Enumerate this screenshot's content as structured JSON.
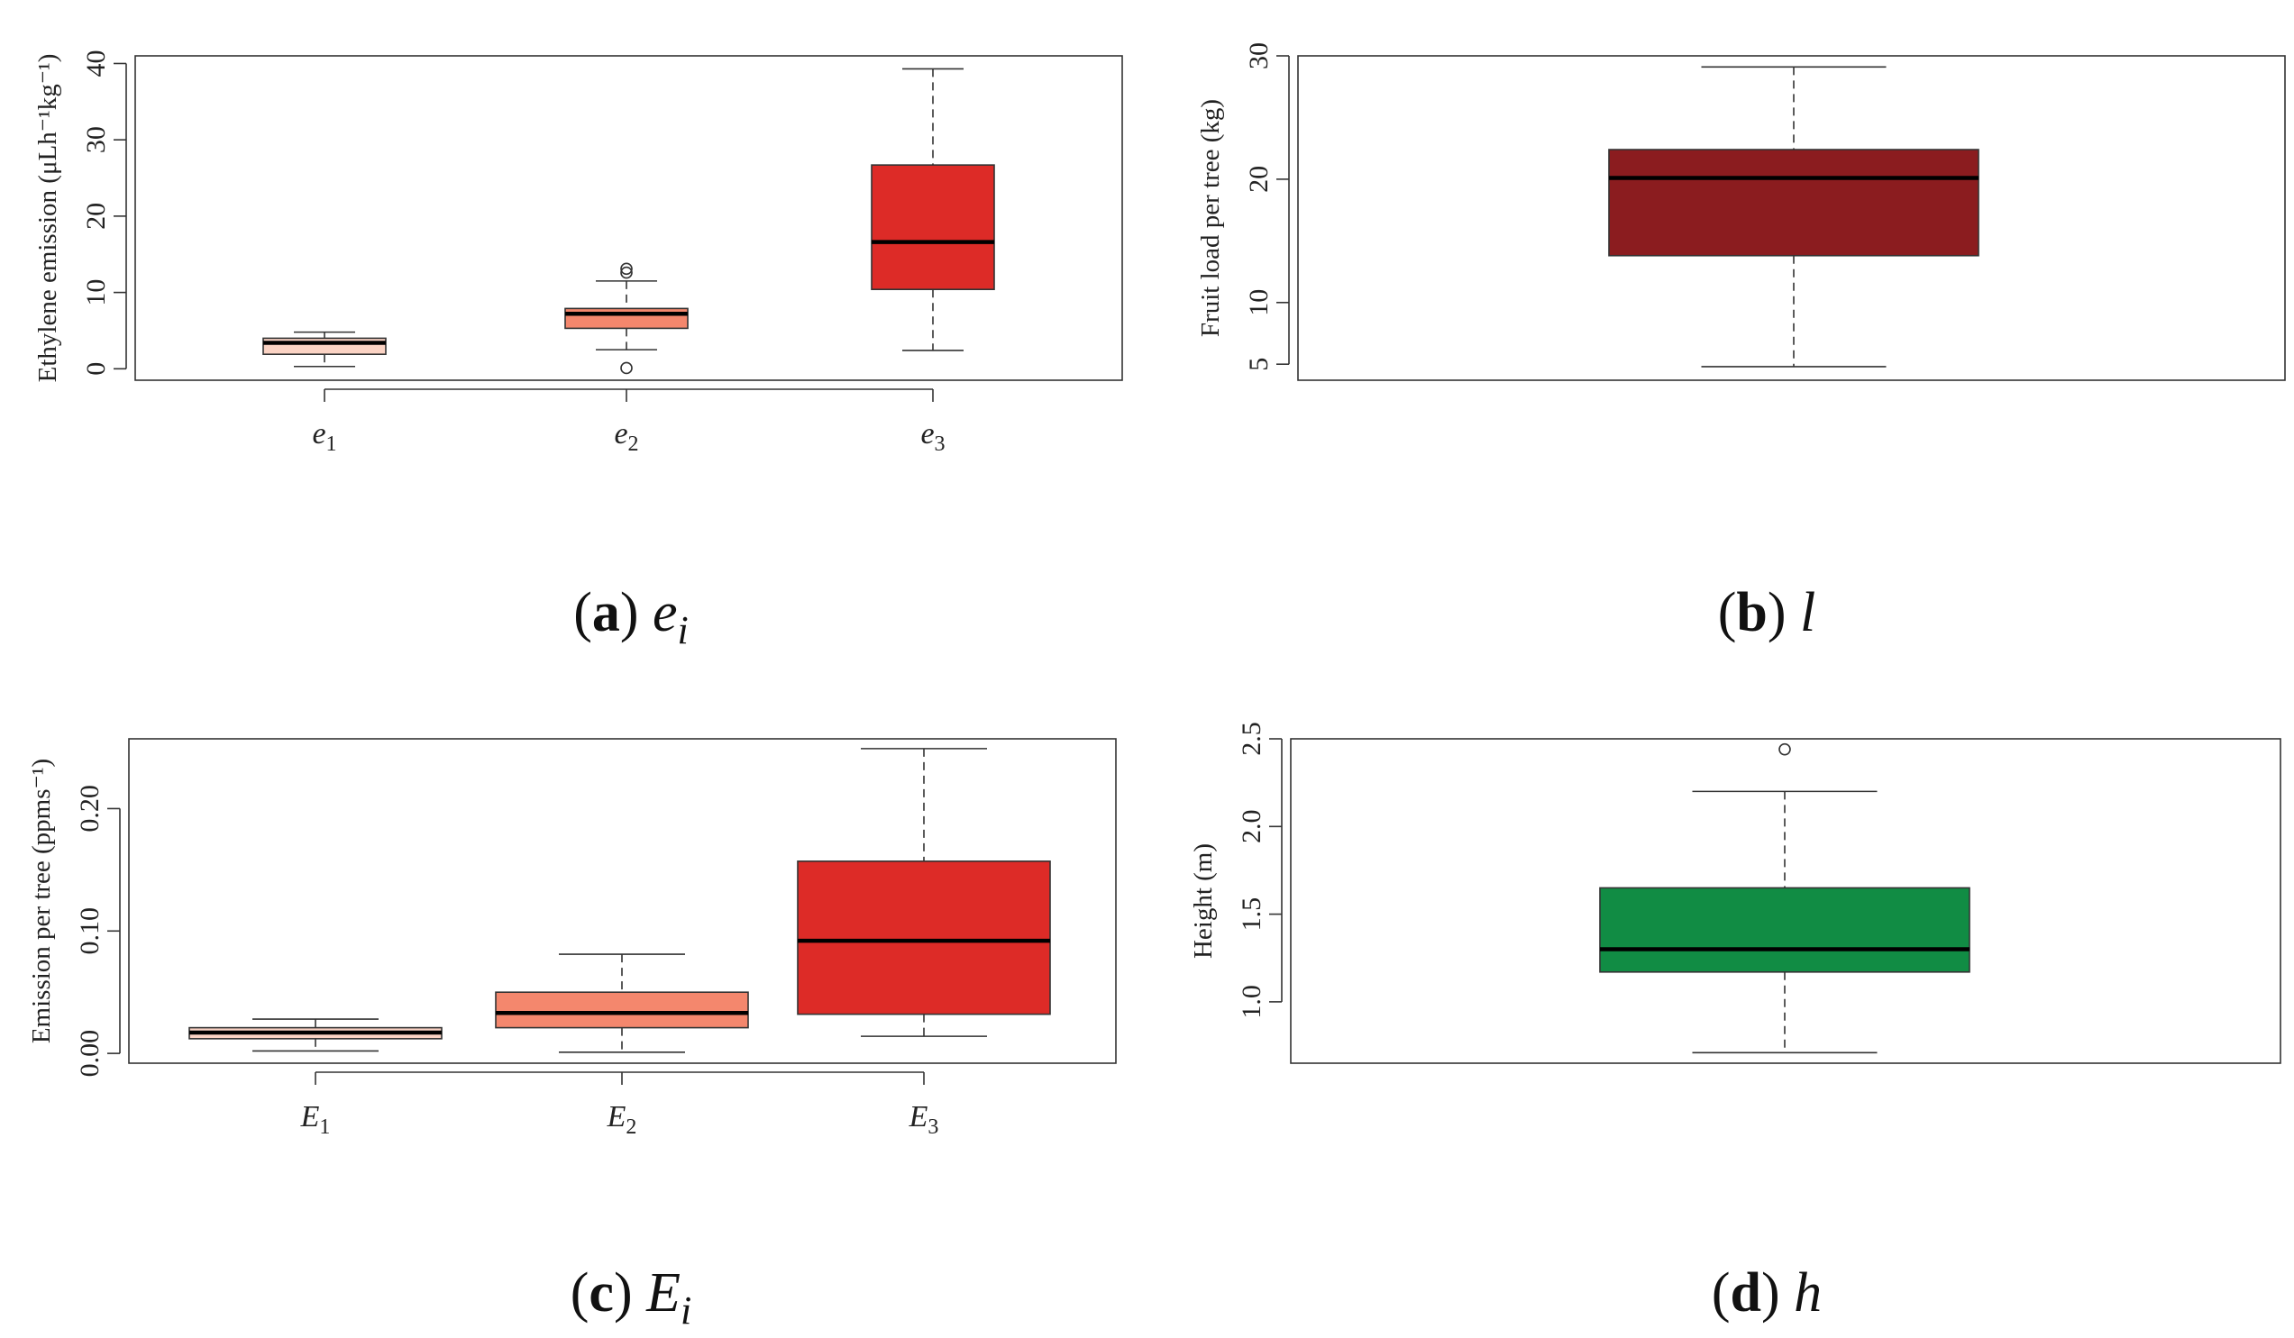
{
  "chart_data": [
    {
      "type": "box",
      "id": "a",
      "caption_letter": "a",
      "caption_symbol": "e",
      "caption_sub": "i",
      "ylabel": "Ethylene emission (μLh⁻¹kg⁻¹)",
      "ylim": [
        -1.5,
        41
      ],
      "yticks": [
        0,
        10,
        20,
        30,
        40
      ],
      "ytick_labels": [
        "0",
        "10",
        "20",
        "30",
        "40"
      ],
      "categories": [
        "e1",
        "e2",
        "e3"
      ],
      "category_symbols": [
        "e",
        "e",
        "e"
      ],
      "category_subs": [
        "1",
        "2",
        "3"
      ],
      "boxes": [
        {
          "name": "e1",
          "whisker_low": 0.3,
          "q1": 1.9,
          "median": 3.4,
          "q3": 4.0,
          "whisker_high": 4.8,
          "outliers": [],
          "color": "#fbd3c4"
        },
        {
          "name": "e2",
          "whisker_low": 2.5,
          "q1": 5.3,
          "median": 7.2,
          "q3": 7.9,
          "whisker_high": 11.5,
          "outliers": [
            0.1,
            12.6,
            13.1
          ],
          "color": "#f4876d"
        },
        {
          "name": "e3",
          "whisker_low": 2.4,
          "q1": 10.4,
          "median": 16.6,
          "q3": 26.7,
          "whisker_high": 39.3,
          "outliers": [],
          "color": "#dd2b27"
        }
      ]
    },
    {
      "type": "box",
      "id": "b",
      "caption_letter": "b",
      "caption_symbol": "l",
      "caption_sub": "",
      "ylabel": "Fruit load per tree (kg)",
      "ylim": [
        3.7,
        30
      ],
      "yticks": [
        5,
        10,
        20,
        30
      ],
      "ytick_labels": [
        "5",
        "10",
        "20",
        "30"
      ],
      "categories": [
        ""
      ],
      "category_symbols": [
        ""
      ],
      "category_subs": [
        ""
      ],
      "boxes": [
        {
          "name": "l",
          "whisker_low": 4.8,
          "q1": 13.8,
          "median": 20.1,
          "q3": 22.4,
          "whisker_high": 29.1,
          "outliers": [],
          "color": "#8b1c1f"
        }
      ]
    },
    {
      "type": "box",
      "id": "c",
      "caption_letter": "c",
      "caption_symbol": "E",
      "caption_sub": "i",
      "ylabel": "Emission per tree (ppms⁻¹)",
      "ylim": [
        -0.008,
        0.257
      ],
      "yticks": [
        0.0,
        0.1,
        0.2
      ],
      "ytick_labels": [
        "0.00",
        "0.10",
        "0.20"
      ],
      "categories": [
        "E1",
        "E2",
        "E3"
      ],
      "category_symbols": [
        "E",
        "E",
        "E"
      ],
      "category_subs": [
        "1",
        "2",
        "3"
      ],
      "boxes": [
        {
          "name": "E1",
          "whisker_low": 0.002,
          "q1": 0.012,
          "median": 0.017,
          "q3": 0.021,
          "whisker_high": 0.028,
          "outliers": [],
          "color": "#fbd3c4"
        },
        {
          "name": "E2",
          "whisker_low": 0.001,
          "q1": 0.021,
          "median": 0.033,
          "q3": 0.05,
          "whisker_high": 0.081,
          "outliers": [],
          "color": "#f4876d"
        },
        {
          "name": "E3",
          "whisker_low": 0.014,
          "q1": 0.032,
          "median": 0.092,
          "q3": 0.157,
          "whisker_high": 0.249,
          "outliers": [],
          "color": "#dd2b27"
        }
      ]
    },
    {
      "type": "box",
      "id": "d",
      "caption_letter": "d",
      "caption_symbol": "h",
      "caption_sub": "",
      "ylabel": "Height (m)",
      "ylim": [
        0.65,
        2.5
      ],
      "yticks": [
        1.0,
        1.5,
        2.0,
        2.5
      ],
      "ytick_labels": [
        "1.0",
        "1.5",
        "2.0",
        "2.5"
      ],
      "categories": [
        ""
      ],
      "category_symbols": [
        ""
      ],
      "category_subs": [
        ""
      ],
      "boxes": [
        {
          "name": "h",
          "whisker_low": 0.71,
          "q1": 1.17,
          "median": 1.3,
          "q3": 1.65,
          "whisker_high": 2.2,
          "outliers": [
            2.44
          ],
          "color": "#118c44"
        }
      ]
    }
  ]
}
